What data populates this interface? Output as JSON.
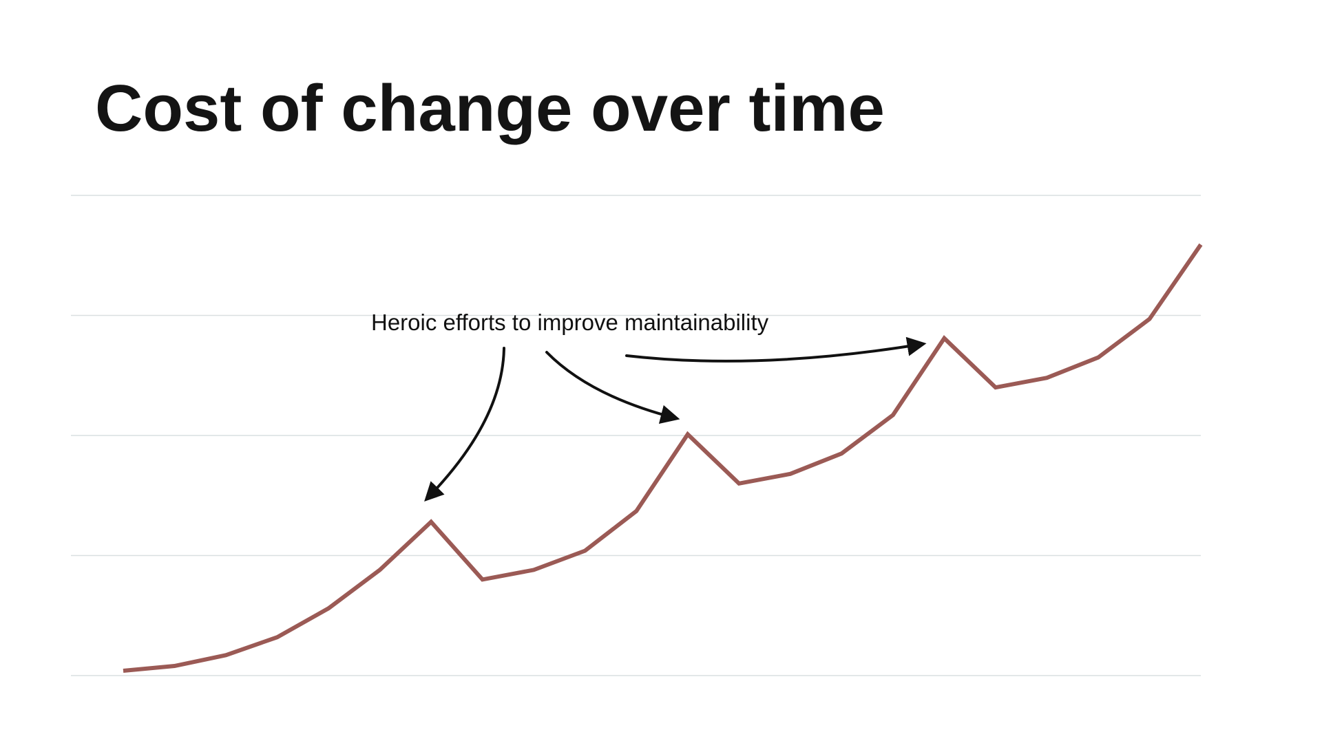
{
  "chart_data": {
    "type": "line",
    "title": "Cost of change over time",
    "annotation": "Heroic efforts to improve maintainability",
    "categories": [
      null,
      null,
      null,
      null,
      null,
      null,
      null,
      null,
      null,
      null,
      null,
      null,
      null,
      null,
      null,
      null,
      null,
      null,
      null,
      null,
      null,
      null
    ],
    "values": [
      0.04,
      0.08,
      0.17,
      0.32,
      0.56,
      0.88,
      1.28,
      0.8,
      0.88,
      1.04,
      1.37,
      2.01,
      1.6,
      1.68,
      1.85,
      2.17,
      2.81,
      2.4,
      2.48,
      2.65,
      2.97,
      3.59
    ],
    "color": "#9b5a55",
    "ylim": [
      0,
      4
    ],
    "yticks": [
      0,
      1,
      2,
      3,
      4
    ],
    "grid": true
  }
}
